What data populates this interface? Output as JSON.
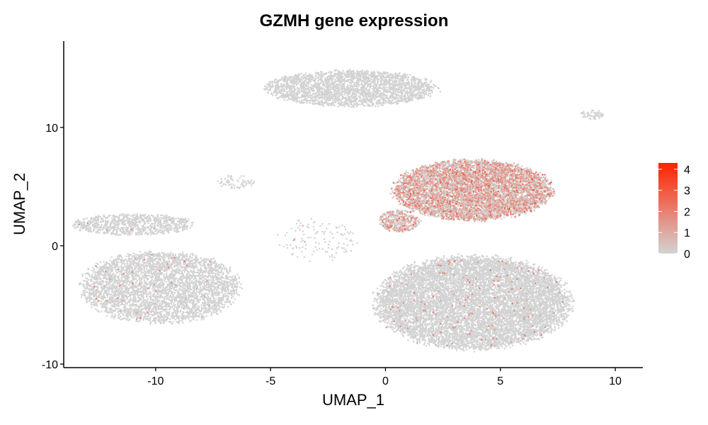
{
  "chart_data": {
    "type": "scatter",
    "title": "GZMH gene expression",
    "xlabel": "UMAP_1",
    "ylabel": "UMAP_2",
    "xlim": [
      -14,
      11.2
    ],
    "ylim": [
      -10.3,
      17.3
    ],
    "x_ticks": [
      "-10",
      "-5",
      "0",
      "5",
      "10"
    ],
    "y_ticks": [
      "-10",
      "0",
      "10"
    ],
    "colorbar": {
      "min": 0,
      "max": 4.3,
      "ticks": [
        "0",
        "1",
        "2",
        "3",
        "4"
      ],
      "low_color": "#D3D3D3",
      "high_color": "#FF2200"
    },
    "clusters": [
      {
        "cx": -1.5,
        "cy": 13.3,
        "rx": 3.7,
        "ry": 1.5,
        "n": 2600,
        "expr": 0.0
      },
      {
        "cx": 9.0,
        "cy": 11.1,
        "rx": 0.55,
        "ry": 0.4,
        "n": 60,
        "expr": 0.0
      },
      {
        "cx": -6.5,
        "cy": 5.4,
        "rx": 0.8,
        "ry": 0.6,
        "n": 70,
        "expr": 0.0
      },
      {
        "cx": -11.0,
        "cy": 1.8,
        "rx": 2.6,
        "ry": 0.9,
        "n": 900,
        "expr": 0.01
      },
      {
        "cx": -9.8,
        "cy": -3.5,
        "rx": 3.4,
        "ry": 3.0,
        "n": 4200,
        "expr": 0.01
      },
      {
        "cx": -3.0,
        "cy": 0.5,
        "rx": 1.8,
        "ry": 1.8,
        "n": 120,
        "expr": 0.02
      },
      {
        "cx": 3.8,
        "cy": 4.7,
        "rx": 3.4,
        "ry": 2.5,
        "n": 6500,
        "expr": 0.8
      },
      {
        "cx": 0.6,
        "cy": 2.1,
        "rx": 0.9,
        "ry": 0.9,
        "n": 450,
        "expr": 0.55
      },
      {
        "cx": 3.8,
        "cy": -4.8,
        "rx": 4.2,
        "ry": 3.9,
        "n": 9500,
        "expr": 0.015
      }
    ]
  }
}
